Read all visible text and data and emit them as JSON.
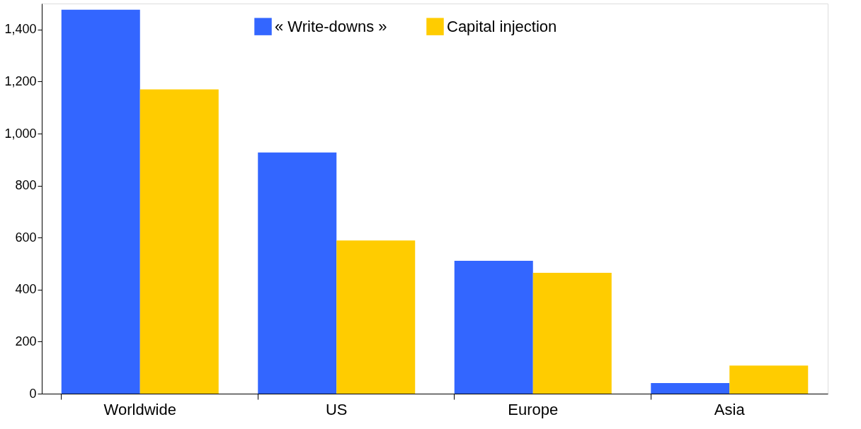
{
  "chart_data": {
    "type": "bar",
    "categories": [
      "Worldwide",
      "US",
      "Europe",
      "Asia"
    ],
    "series": [
      {
        "name": "« Write-downs »",
        "color": "#3366ff",
        "values": [
          1476,
          927,
          511,
          41
        ]
      },
      {
        "name": "Capital injection",
        "color": "#ffcc00",
        "values": [
          1170,
          589,
          465,
          108
        ]
      }
    ],
    "ylim": [
      0,
      1500
    ],
    "yticks": [
      0,
      200,
      400,
      600,
      800,
      {
        "value": 1000,
        "label": "1,000"
      },
      {
        "value": 1200,
        "label": "1,200"
      },
      {
        "value": 1400,
        "label": "1,400"
      }
    ],
    "grid": false,
    "legend": "top"
  }
}
